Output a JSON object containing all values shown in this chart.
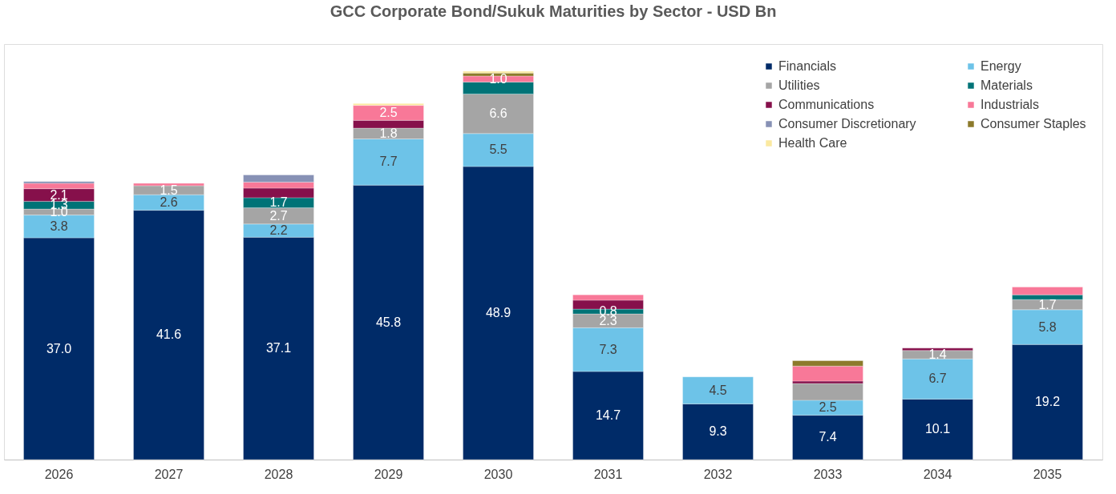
{
  "chart_data": {
    "type": "bar",
    "stacked": true,
    "title": "GCC Corporate Bond/Sukuk Maturities by Sector - USD Bn",
    "categories": [
      "2026",
      "2027",
      "2028",
      "2029",
      "2030",
      "2031",
      "2032",
      "2033",
      "2034",
      "2035"
    ],
    "legend": "top right",
    "series": [
      {
        "name": "Financials",
        "color": "#002b68",
        "values": [
          37.0,
          41.6,
          37.1,
          45.8,
          48.9,
          14.7,
          9.3,
          7.4,
          10.1,
          19.2
        ],
        "value_labels": [
          "37.0",
          "41.6",
          "37.1",
          "45.8",
          "48.9",
          "14.7",
          "9.3",
          "7.4",
          "10.1",
          "19.2"
        ]
      },
      {
        "name": "Energy",
        "color": "#6dc3e8",
        "values": [
          3.8,
          2.6,
          2.2,
          7.7,
          5.5,
          7.3,
          4.5,
          2.5,
          6.7,
          5.8
        ],
        "value_labels": [
          "3.8",
          "2.6",
          "2.2",
          "7.7",
          "5.5",
          "7.3",
          "4.5",
          "2.5",
          "6.7",
          "5.8"
        ]
      },
      {
        "name": "Utilities",
        "color": "#a5a5a5",
        "values": [
          1.0,
          1.5,
          2.7,
          1.8,
          6.6,
          2.3,
          null,
          2.8,
          1.4,
          1.7
        ],
        "value_labels": [
          "1.0",
          "1.5",
          "2.7",
          "1.8",
          "6.6",
          "2.3",
          null,
          null,
          "1.4",
          "1.7"
        ]
      },
      {
        "name": "Materials",
        "color": "#007377",
        "values": [
          1.3,
          null,
          1.7,
          null,
          2.0,
          0.8,
          null,
          null,
          null,
          0.8
        ],
        "value_labels": [
          "1.3",
          null,
          "1.7",
          null,
          null,
          "0.8",
          null,
          null,
          null,
          null
        ]
      },
      {
        "name": "Communications",
        "color": "#86104b",
        "values": [
          2.1,
          null,
          1.6,
          1.3,
          null,
          1.5,
          null,
          0.4,
          0.4,
          null
        ],
        "value_labels": [
          "2.1",
          null,
          null,
          null,
          null,
          null,
          null,
          null,
          null,
          null
        ]
      },
      {
        "name": "Industrials",
        "color": "#f87898",
        "values": [
          0.9,
          0.4,
          1.0,
          2.5,
          1.0,
          0.9,
          null,
          2.5,
          null,
          1.3
        ],
        "value_labels": [
          null,
          null,
          null,
          "2.5",
          "1.0",
          null,
          null,
          null,
          null,
          null
        ]
      },
      {
        "name": "Consumer Discretionary",
        "color": "#8791b5",
        "values": [
          0.3,
          null,
          1.2,
          null,
          null,
          null,
          null,
          null,
          null,
          null
        ],
        "value_labels": [
          null,
          null,
          null,
          null,
          null,
          null,
          null,
          null,
          null,
          null
        ]
      },
      {
        "name": "Consumer Staples",
        "color": "#8c7a2b",
        "values": [
          null,
          null,
          null,
          null,
          0.5,
          null,
          null,
          0.9,
          null,
          null
        ],
        "value_labels": [
          null,
          null,
          null,
          null,
          null,
          null,
          null,
          null,
          null,
          null
        ]
      },
      {
        "name": "Health Care",
        "color": "#fbe9a0",
        "values": [
          null,
          null,
          null,
          0.3,
          0.3,
          null,
          null,
          null,
          null,
          null
        ],
        "value_labels": [
          null,
          null,
          null,
          null,
          null,
          null,
          null,
          null,
          null,
          null
        ]
      }
    ]
  }
}
